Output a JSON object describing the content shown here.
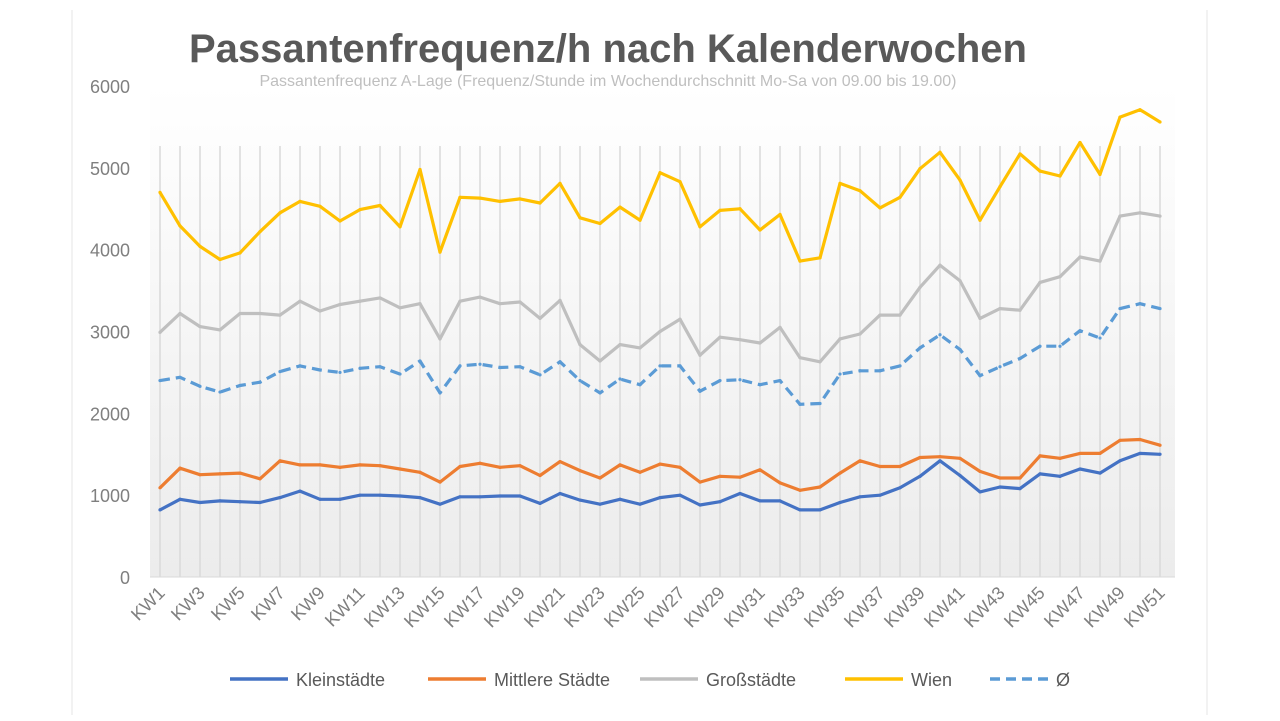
{
  "chart_data": {
    "type": "line",
    "title": "Passantenfrequenz/h nach Kalenderwochen",
    "subtitle": "Passantenfrequenz A-Lage (Frequenz/Stunde im Wochendurchschnitt Mo-Sa von 09.00 bis 19.00)",
    "xlabel": "",
    "ylabel": "",
    "ylim": [
      0,
      6000
    ],
    "yticks": [
      "0",
      "1000",
      "2000",
      "3000",
      "4000",
      "5000",
      "6000"
    ],
    "grid": "vertical",
    "legend_position": "bottom",
    "categories": [
      "KW1",
      "KW2",
      "KW3",
      "KW4",
      "KW5",
      "KW6",
      "KW7",
      "KW8",
      "KW9",
      "KW10",
      "KW11",
      "KW12",
      "KW13",
      "KW14",
      "KW15",
      "KW16",
      "KW17",
      "KW18",
      "KW19",
      "KW20",
      "KW21",
      "KW22",
      "KW23",
      "KW24",
      "KW25",
      "KW26",
      "KW27",
      "KW28",
      "KW29",
      "KW30",
      "KW31",
      "KW32",
      "KW33",
      "KW34",
      "KW35",
      "KW36",
      "KW37",
      "KW38",
      "KW39",
      "KW40",
      "KW41",
      "KW42",
      "KW43",
      "KW44",
      "KW45",
      "KW46",
      "KW47",
      "KW48",
      "KW49",
      "KW50",
      "KW51"
    ],
    "xtick_labels": [
      "KW1",
      "KW3",
      "KW5",
      "KW7",
      "KW9",
      "KW11",
      "KW13",
      "KW15",
      "KW17",
      "KW19",
      "KW21",
      "KW23",
      "KW25",
      "KW27",
      "KW29",
      "KW31",
      "KW33",
      "KW35",
      "KW37",
      "KW39",
      "KW41",
      "KW43",
      "KW45",
      "KW47",
      "KW49",
      "KW51"
    ],
    "series": [
      {
        "name": "Kleinstädte",
        "color": "#4472c4",
        "dashed": false,
        "values": [
          820,
          950,
          910,
          930,
          920,
          910,
          970,
          1050,
          950,
          950,
          1000,
          1000,
          990,
          970,
          890,
          980,
          980,
          990,
          990,
          900,
          1020,
          940,
          890,
          950,
          890,
          970,
          1000,
          880,
          920,
          1020,
          930,
          930,
          820,
          820,
          910,
          980,
          1000,
          1090,
          1230,
          1420,
          1240,
          1040,
          1100,
          1080,
          1260,
          1230,
          1320,
          1270,
          1420,
          1510,
          1500
        ]
      },
      {
        "name": "Mittlere Städte",
        "color": "#ed7d31",
        "dashed": false,
        "values": [
          1090,
          1330,
          1250,
          1260,
          1270,
          1200,
          1420,
          1370,
          1370,
          1340,
          1370,
          1360,
          1320,
          1280,
          1160,
          1350,
          1390,
          1340,
          1360,
          1240,
          1410,
          1300,
          1210,
          1370,
          1280,
          1380,
          1340,
          1160,
          1230,
          1220,
          1310,
          1150,
          1060,
          1100,
          1270,
          1420,
          1350,
          1350,
          1460,
          1470,
          1450,
          1290,
          1210,
          1210,
          1480,
          1450,
          1510,
          1510,
          1670,
          1680,
          1610
        ]
      },
      {
        "name": "Großstädte",
        "color": "#bfbfbf",
        "dashed": false,
        "values": [
          2990,
          3220,
          3060,
          3020,
          3220,
          3220,
          3200,
          3370,
          3250,
          3330,
          3370,
          3410,
          3290,
          3340,
          2910,
          3370,
          3420,
          3340,
          3360,
          3160,
          3380,
          2840,
          2640,
          2840,
          2800,
          3000,
          3150,
          2710,
          2930,
          2900,
          2860,
          3050,
          2680,
          2630,
          2910,
          2970,
          3200,
          3200,
          3540,
          3810,
          3620,
          3160,
          3280,
          3260,
          3600,
          3670,
          3910,
          3860,
          4410,
          4450,
          4410
        ]
      },
      {
        "name": "Wien",
        "color": "#ffc000",
        "dashed": false,
        "values": [
          4700,
          4290,
          4040,
          3880,
          3960,
          4220,
          4450,
          4590,
          4530,
          4350,
          4490,
          4540,
          4280,
          4980,
          3970,
          4640,
          4630,
          4590,
          4620,
          4570,
          4810,
          4390,
          4320,
          4520,
          4360,
          4940,
          4830,
          4280,
          4480,
          4500,
          4240,
          4430,
          3860,
          3900,
          4810,
          4720,
          4510,
          4640,
          4990,
          5190,
          4850,
          4360,
          4770,
          5170,
          4960,
          4900,
          5310,
          4920,
          5620,
          5710,
          5560
        ]
      },
      {
        "name": "Ø",
        "color": "#5b9bd5",
        "dashed": true,
        "values": [
          2400,
          2440,
          2330,
          2260,
          2340,
          2380,
          2510,
          2580,
          2530,
          2500,
          2550,
          2570,
          2480,
          2640,
          2250,
          2580,
          2600,
          2560,
          2570,
          2470,
          2630,
          2400,
          2250,
          2420,
          2350,
          2580,
          2580,
          2270,
          2400,
          2410,
          2350,
          2400,
          2110,
          2120,
          2480,
          2520,
          2520,
          2580,
          2800,
          2960,
          2780,
          2460,
          2570,
          2670,
          2820,
          2820,
          3010,
          2920,
          3280,
          3340,
          3280
        ]
      }
    ]
  }
}
